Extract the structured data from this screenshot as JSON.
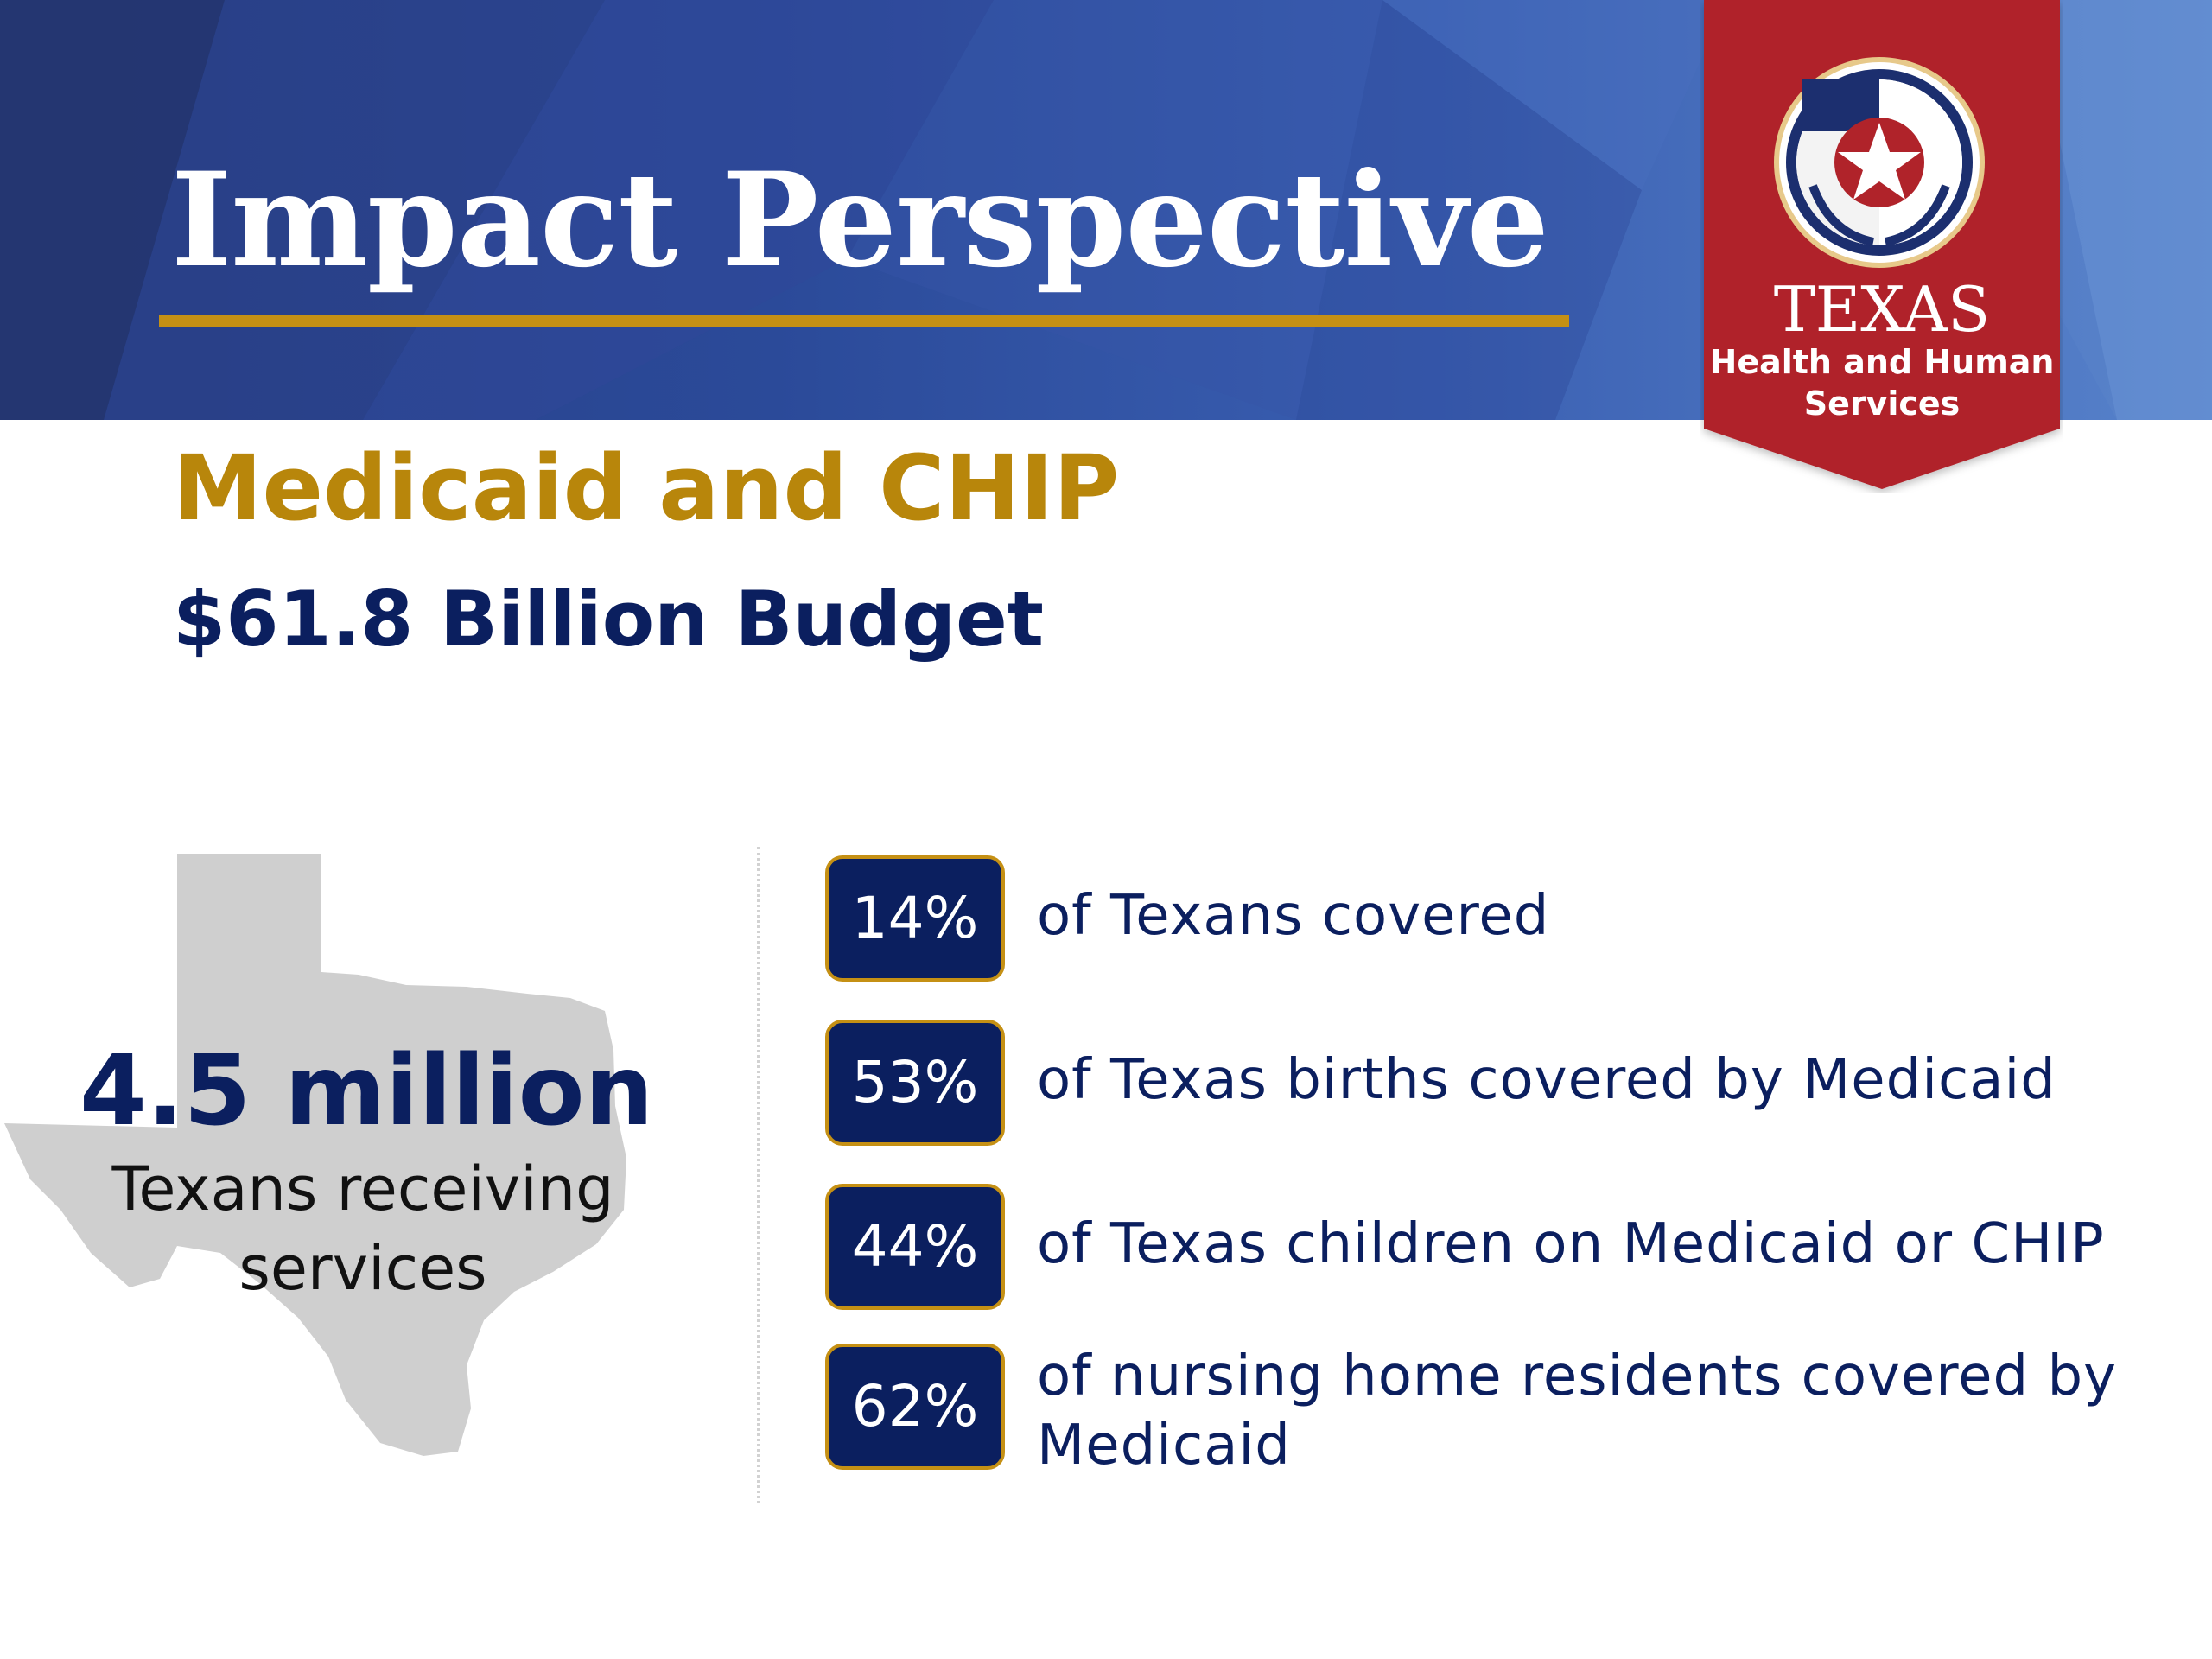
{
  "header": {
    "title": "Impact Perspective"
  },
  "logo": {
    "state": "TEXAS",
    "agency_line1": "Health and Human",
    "agency_line2": "Services"
  },
  "program": {
    "name": "Medicaid and CHIP",
    "budget": "$61.8 Billion Budget"
  },
  "highlight": {
    "value": "4.5 million",
    "caption": "Texans receiving services"
  },
  "stats": [
    {
      "percent": "14%",
      "text": "of Texans covered"
    },
    {
      "percent": "53%",
      "text": "of Texas births covered by Medicaid"
    },
    {
      "percent": "44%",
      "text": "of Texas children on Medicaid or CHIP"
    },
    {
      "percent": "62%",
      "text": "of nursing home residents covered by Medicaid"
    }
  ],
  "colors": {
    "navy": "#0b1f5f",
    "gold": "#b8860b",
    "banner_blue": "#2b4a99",
    "logo_red": "#b0232a",
    "map_gray": "#cfcfcf"
  }
}
